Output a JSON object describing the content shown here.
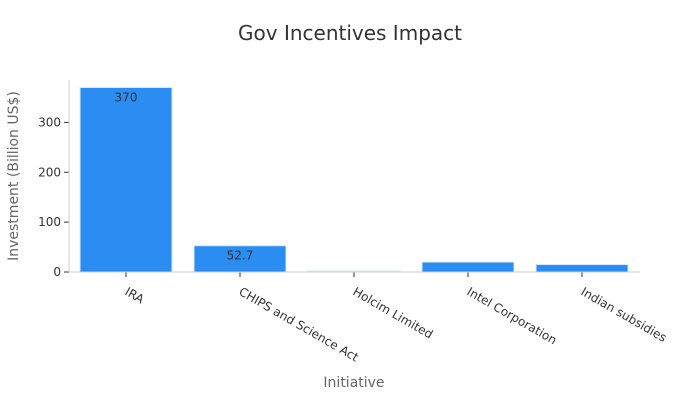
{
  "chart_data": {
    "type": "bar",
    "title": "Gov Incentives Impact",
    "xlabel": "Initiative",
    "ylabel": "Investment (Billion US$)",
    "categories": [
      "IRA",
      "CHIPS and Science Act",
      "Holcim Limited",
      "Intel Corporation",
      "Indian subsidies"
    ],
    "values": [
      370,
      52.7,
      2,
      20,
      15
    ],
    "data_labels": [
      "370",
      "52.7",
      "",
      "",
      ""
    ],
    "ylim": [
      0,
      385
    ],
    "yticks": [
      0,
      100,
      200,
      300
    ],
    "ytick_labels": [
      "0",
      "100",
      "200",
      "300"
    ],
    "grid": false,
    "legend": "none",
    "colors": {
      "bar": "#2b8cf2",
      "bar_edge": "#d8e8f8"
    }
  }
}
